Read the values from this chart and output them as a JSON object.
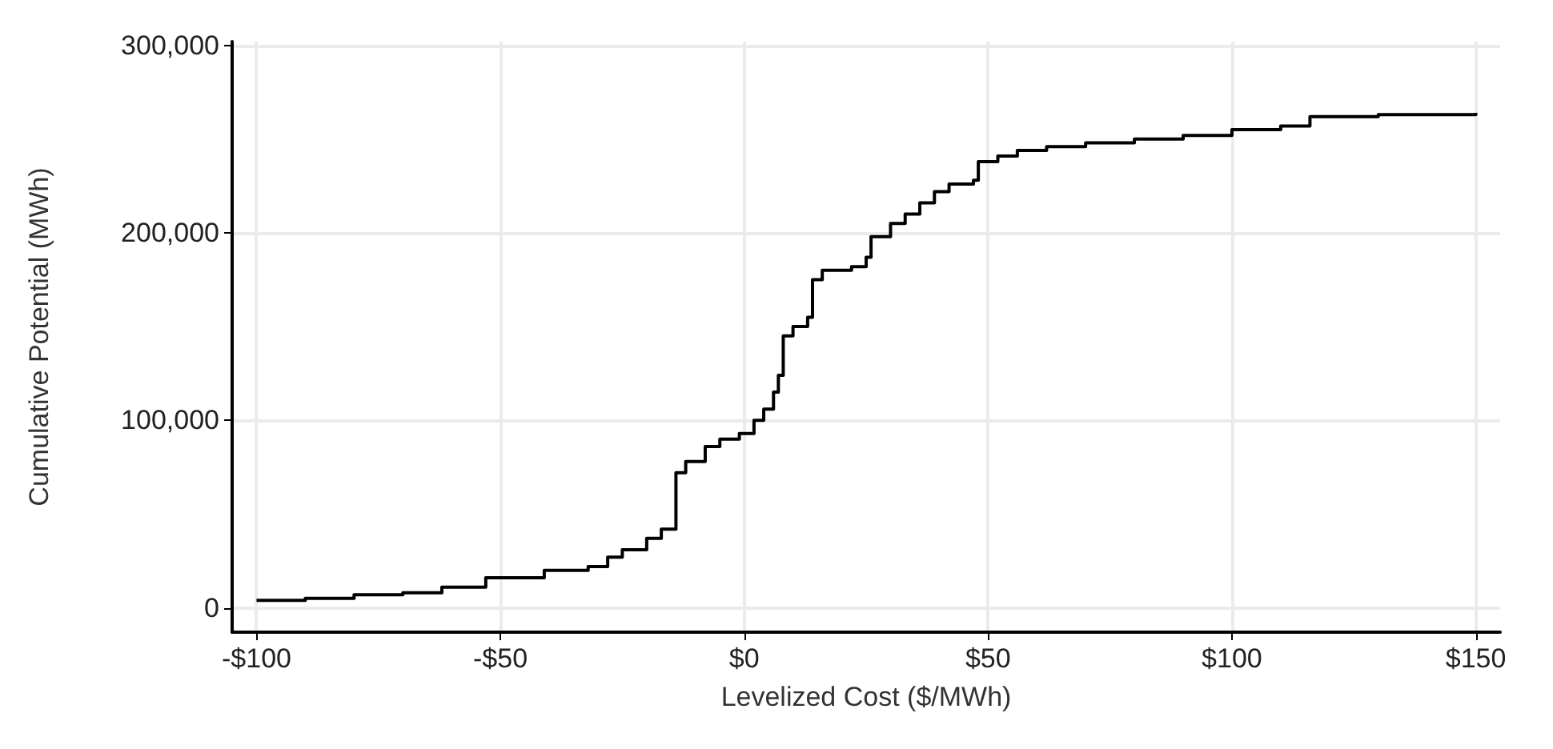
{
  "chart_data": {
    "type": "step",
    "xlabel": "Levelized Cost ($/MWh)",
    "ylabel": "Cumulative Potential (MWh)",
    "grid": true,
    "marker": "none",
    "line_style": "solid",
    "xlim": [
      -105,
      155
    ],
    "ylim": [
      -13000,
      302000
    ],
    "xticks": [
      {
        "value": -100,
        "label": "-$100"
      },
      {
        "value": -50,
        "label": "-$50"
      },
      {
        "value": 0,
        "label": "$0"
      },
      {
        "value": 50,
        "label": "$50"
      },
      {
        "value": 100,
        "label": "$100"
      },
      {
        "value": 150,
        "label": "$150"
      }
    ],
    "yticks": [
      {
        "value": 0,
        "label": "0"
      },
      {
        "value": 100000,
        "label": "100,000"
      },
      {
        "value": 200000,
        "label": "200,000"
      },
      {
        "value": 300000,
        "label": "300,000"
      }
    ],
    "series": [
      {
        "color": "#000000",
        "x": [
          -100,
          -90,
          -80,
          -70,
          -62,
          -53,
          -41,
          -32,
          -28,
          -25,
          -20,
          -17,
          -14,
          -14,
          -12,
          -8,
          -5,
          -1,
          2,
          4,
          6,
          7,
          8,
          10,
          13,
          14,
          16,
          22,
          25,
          26,
          30,
          33,
          36,
          39,
          42,
          47,
          48,
          52,
          56,
          62,
          70,
          80,
          90,
          100,
          110,
          116,
          130,
          150
        ],
        "values": [
          4000,
          5000,
          7000,
          8000,
          11000,
          16000,
          20000,
          22000,
          27000,
          31000,
          37000,
          42000,
          47000,
          72000,
          78000,
          86000,
          90000,
          93000,
          100000,
          106000,
          115000,
          124000,
          145000,
          150000,
          155000,
          175000,
          180000,
          182000,
          187000,
          198000,
          205000,
          210000,
          216000,
          222000,
          226000,
          228000,
          238000,
          241000,
          244000,
          246000,
          248000,
          250000,
          252000,
          255000,
          257000,
          262000,
          263000,
          264000
        ]
      }
    ]
  }
}
